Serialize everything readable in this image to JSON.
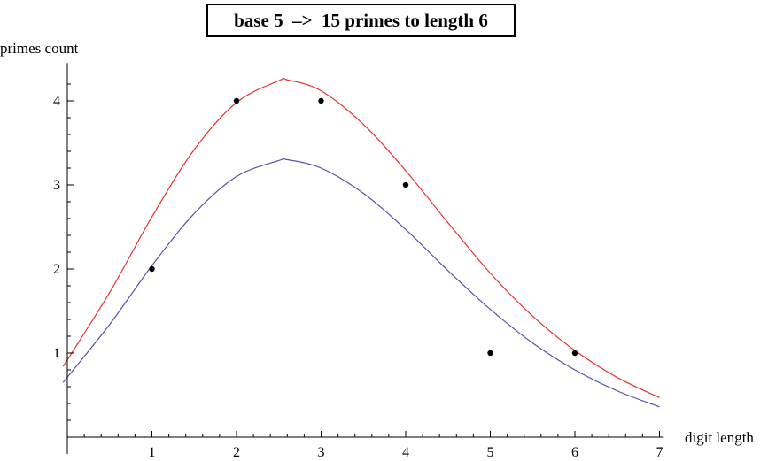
{
  "chart_data": {
    "type": "scatter",
    "title": "base 5  –>  15 primes to length 6",
    "xlabel": "digit length",
    "ylabel": "primes count",
    "xlim": [
      -1.05,
      7.05
    ],
    "ylim": [
      -0.2,
      4.45
    ],
    "x_ticks": [
      1,
      2,
      3,
      4,
      5,
      6,
      7
    ],
    "y_ticks": [
      1,
      2,
      3,
      4
    ],
    "points": {
      "x": [
        1,
        2,
        3,
        4,
        5,
        6
      ],
      "y": [
        2,
        4,
        4,
        3,
        1,
        1
      ],
      "color": "#000000"
    },
    "series": [
      {
        "color": "#e8302a",
        "x": [
          -0.05,
          0.5,
          1,
          1.5,
          2,
          2.5,
          2.6,
          3,
          3.5,
          4,
          4.5,
          5,
          5.5,
          6,
          6.5,
          7
        ],
        "y": [
          0.84,
          1.72,
          2.62,
          3.42,
          3.98,
          4.24,
          4.25,
          4.12,
          3.72,
          3.17,
          2.55,
          1.95,
          1.44,
          1.03,
          0.71,
          0.47
        ]
      },
      {
        "color": "#5652a6",
        "x": [
          -0.05,
          0.5,
          1,
          1.5,
          2,
          2.5,
          2.6,
          3,
          3.5,
          4,
          4.5,
          5,
          5.5,
          6,
          6.5,
          7
        ],
        "y": [
          0.65,
          1.34,
          2.04,
          2.66,
          3.1,
          3.29,
          3.3,
          3.2,
          2.9,
          2.47,
          1.98,
          1.52,
          1.12,
          0.8,
          0.55,
          0.36
        ]
      }
    ]
  }
}
